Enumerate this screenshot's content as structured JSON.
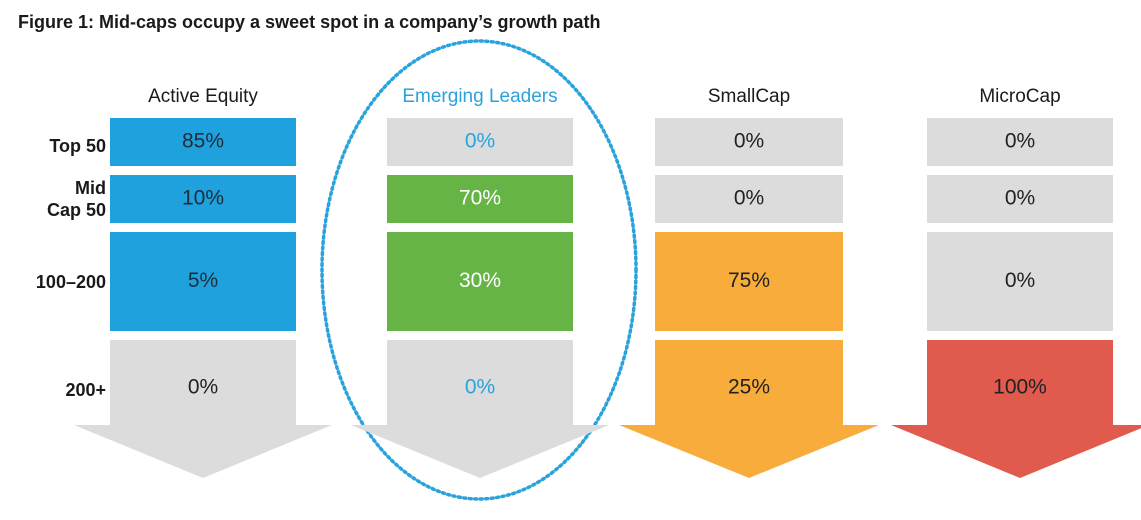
{
  "title": "Figure 1: Mid-caps occupy a sweet spot in a company’s growth path",
  "chart_data": {
    "type": "table",
    "title": "Figure 1: Mid-caps occupy a sweet spot in a company’s growth path",
    "rows": [
      "Top 50",
      "Mid Cap 50",
      "100–200",
      "200+"
    ],
    "row_labels_display": [
      [
        "Top 50"
      ],
      [
        "Mid",
        "Cap 50"
      ],
      [
        "100–200"
      ],
      [
        "200+"
      ]
    ],
    "series": [
      {
        "name": "Active Equity",
        "values": [
          "85%",
          "10%",
          "5%",
          "0%"
        ],
        "colors": [
          "#1ea1dc",
          "#1ea1dc",
          "#1ea1dc",
          "#dcdcdc"
        ],
        "text_colors": [
          "#1f2d3a",
          "#1f2d3a",
          "#1f2d3a",
          "#222222"
        ]
      },
      {
        "name": "Emerging Leaders",
        "values": [
          "0%",
          "70%",
          "30%",
          "0%"
        ],
        "colors": [
          "#dcdcdc",
          "#66b446",
          "#66b446",
          "#dcdcdc"
        ],
        "text_colors": [
          "#2aa3dd",
          "#ffffff",
          "#ffffff",
          "#2aa3dd"
        ],
        "highlighted": true
      },
      {
        "name": "SmallCap",
        "values": [
          "0%",
          "0%",
          "75%",
          "25%"
        ],
        "colors": [
          "#dcdcdc",
          "#dcdcdc",
          "#f7ac3c",
          "#f7ac3c"
        ],
        "text_colors": [
          "#222222",
          "#222222",
          "#222222",
          "#222222"
        ]
      },
      {
        "name": "MicroCap",
        "values": [
          "0%",
          "0%",
          "0%",
          "100%"
        ],
        "colors": [
          "#dcdcdc",
          "#dcdcdc",
          "#dcdcdc",
          "#e15a4e"
        ],
        "text_colors": [
          "#222222",
          "#222222",
          "#222222",
          "#222222"
        ]
      }
    ],
    "highlight_color": "#2aa3dd",
    "header_colors": [
      "#1a1a1a",
      "#2aa3dd",
      "#1a1a1a",
      "#1a1a1a"
    ]
  }
}
